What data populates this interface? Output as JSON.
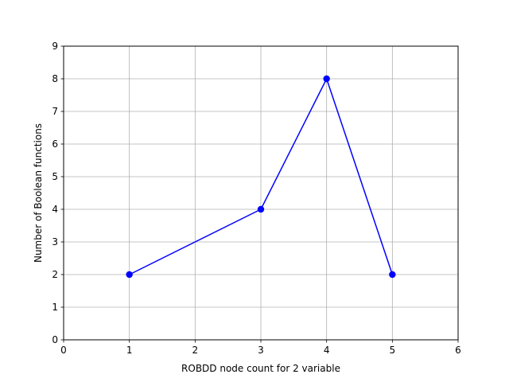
{
  "chart_data": {
    "type": "line",
    "title": "",
    "xlabel": "ROBDD node count for 2 variable",
    "ylabel": "Number of Boolean functions",
    "xlim": [
      0,
      6
    ],
    "ylim": [
      0,
      9
    ],
    "xticks": [
      0,
      1,
      2,
      3,
      4,
      5,
      6
    ],
    "yticks": [
      0,
      1,
      2,
      3,
      4,
      5,
      6,
      7,
      8,
      9
    ],
    "grid": true,
    "legend": "none",
    "series": [
      {
        "color": "#0000ff",
        "marker": "circle",
        "x": [
          1,
          3,
          4,
          5
        ],
        "y": [
          2,
          4,
          8,
          2
        ]
      }
    ]
  }
}
